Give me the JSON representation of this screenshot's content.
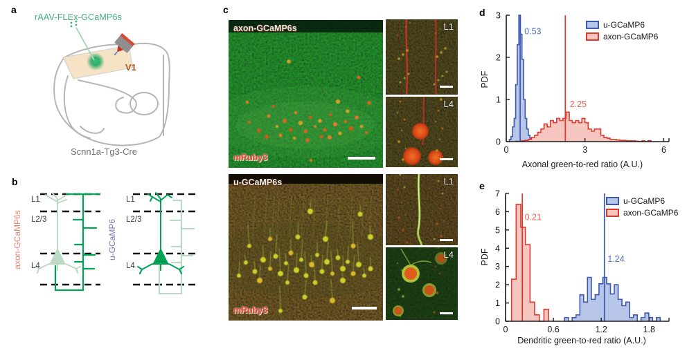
{
  "figure_labels": {
    "a": "a",
    "b": "b",
    "c": "c",
    "d": "d",
    "e": "e"
  },
  "panel_a": {
    "construct_label": "rAAV-FLEx-GCaMP6s",
    "region_label": "V1",
    "mouse_line_label": "Scnn1a-Tg3-Cre"
  },
  "panel_b": {
    "left_neuron_label": "axon-GCaMP6s",
    "right_neuron_label": "u-GCaMP6",
    "left_layers": [
      "L1",
      "L2/3",
      "L4"
    ],
    "right_layers": [
      "L1",
      "L2/3",
      "L4"
    ],
    "colors": {
      "axon_label": "#ef8070",
      "u_label": "#7678bb",
      "dark_green": "#00a152",
      "pale_green": "#bcd9c5"
    }
  },
  "panel_c": {
    "top_image": {
      "green_channel_label": "axon-GCaMP6s",
      "red_channel_label": "mRuby3",
      "inset_labels": [
        "L1",
        "L4"
      ]
    },
    "bottom_image": {
      "green_channel_label": "u-GCaMP6s",
      "red_channel_label": "mRuby3",
      "inset_labels": [
        "L1",
        "L4"
      ]
    }
  },
  "chart_data": [
    {
      "panel": "d",
      "type": "histogram",
      "xlabel": "Axonal green-to-red ratio (A.U.)",
      "ylabel": "PDF",
      "xlim": [
        0,
        6.2
      ],
      "ylim": [
        0,
        3
      ],
      "xticks": [
        "0",
        "3",
        "6"
      ],
      "yticks": [
        "0",
        "1",
        "2",
        "3"
      ],
      "grid": false,
      "legend_position": "top-right",
      "legend": [
        {
          "label": "u-GCaMP6",
          "color": "#3c59ad",
          "fill": "#b6c5e8"
        },
        {
          "label": "axon-GCaMP6",
          "color": "#e0392c",
          "fill": "#f5c6bf"
        }
      ],
      "series": [
        {
          "name": "u-GCaMP6",
          "color": "#3c59ad",
          "fill": "#b6c5e8",
          "label_color": "#5570c5",
          "bin_start": 0.12,
          "bin_width": 0.06,
          "heights": [
            0.05,
            0.12,
            0.35,
            0.55,
            1.35,
            2.3,
            3.0,
            2.55,
            1.95,
            1.0,
            0.55,
            0.3,
            0.15,
            0.08,
            0.04,
            0.02
          ],
          "mean": 0.53,
          "mean_label": "0.53",
          "label_pos": [
            0.69,
            2.55
          ]
        },
        {
          "name": "axon-GCaMP6",
          "color": "#e0392c",
          "fill": "#f5c6bf",
          "label_color": "#ef5f52",
          "bin_start": 0.36,
          "bin_width": 0.12,
          "heights": [
            0.01,
            0.01,
            0.02,
            0.03,
            0.05,
            0.1,
            0.15,
            0.22,
            0.3,
            0.42,
            0.35,
            0.5,
            0.45,
            0.55,
            0.5,
            0.55,
            0.7,
            0.5,
            0.45,
            0.5,
            0.45,
            0.55,
            0.45,
            0.3,
            0.25,
            0.3,
            0.3,
            0.15,
            0.1,
            0.08,
            0.05,
            0.05,
            0.04,
            0.03,
            0.03,
            0.02,
            0.02,
            0.02,
            0.01,
            0.0,
            0.02,
            0.0,
            0.02
          ],
          "mean": 2.25,
          "mean_label": "2.25",
          "label_pos": [
            2.42,
            0.82
          ]
        }
      ]
    },
    {
      "panel": "e",
      "type": "histogram",
      "xlabel": "Dendritic green-to-red ratio (A.U.)",
      "ylabel": "PDF",
      "xlim": [
        0,
        2.05
      ],
      "ylim": [
        0,
        7
      ],
      "xticks": [
        "0",
        "0.6",
        "1.2",
        "1.8"
      ],
      "yticks": [
        "0",
        "1",
        "2",
        "3",
        "4",
        "5",
        "6",
        "7"
      ],
      "grid": false,
      "legend_position": "top-right",
      "legend": [
        {
          "label": "u-GCaMP6",
          "color": "#3c59ad",
          "fill": "#b6c5e8"
        },
        {
          "label": "axon-GCaMP6",
          "color": "#e0392c",
          "fill": "#f5c6bf"
        }
      ],
      "series": [
        {
          "name": "axon-GCaMP6",
          "color": "#e0392c",
          "fill": "#f5c6bf",
          "label_color": "#ef5f52",
          "bin_start": 0.075,
          "bin_width": 0.058,
          "heights": [
            2.3,
            6.4,
            5.15,
            4.2,
            1.05,
            0.35,
            0.0,
            0.65
          ],
          "mean": 0.21,
          "mean_label": "0.21",
          "label_pos": [
            0.24,
            5.55
          ]
        },
        {
          "name": "u-GCaMP6",
          "color": "#3c59ad",
          "fill": "#b6c5e8",
          "label_color": "#5570c5",
          "bin_start": 0.74,
          "bin_width": 0.048,
          "heights": [
            0.2,
            0.0,
            0.2,
            0.35,
            1.45,
            1.05,
            2.4,
            1.2,
            1.45,
            2.05,
            2.4,
            2.05,
            1.5,
            2.0,
            1.2,
            0.85,
            1.05,
            0.2,
            0.35,
            0.0,
            0.2,
            0.45,
            0.2,
            0.0,
            0.2
          ],
          "mean": 1.24,
          "mean_label": "1.24",
          "label_pos": [
            1.28,
            3.25
          ]
        }
      ]
    }
  ]
}
